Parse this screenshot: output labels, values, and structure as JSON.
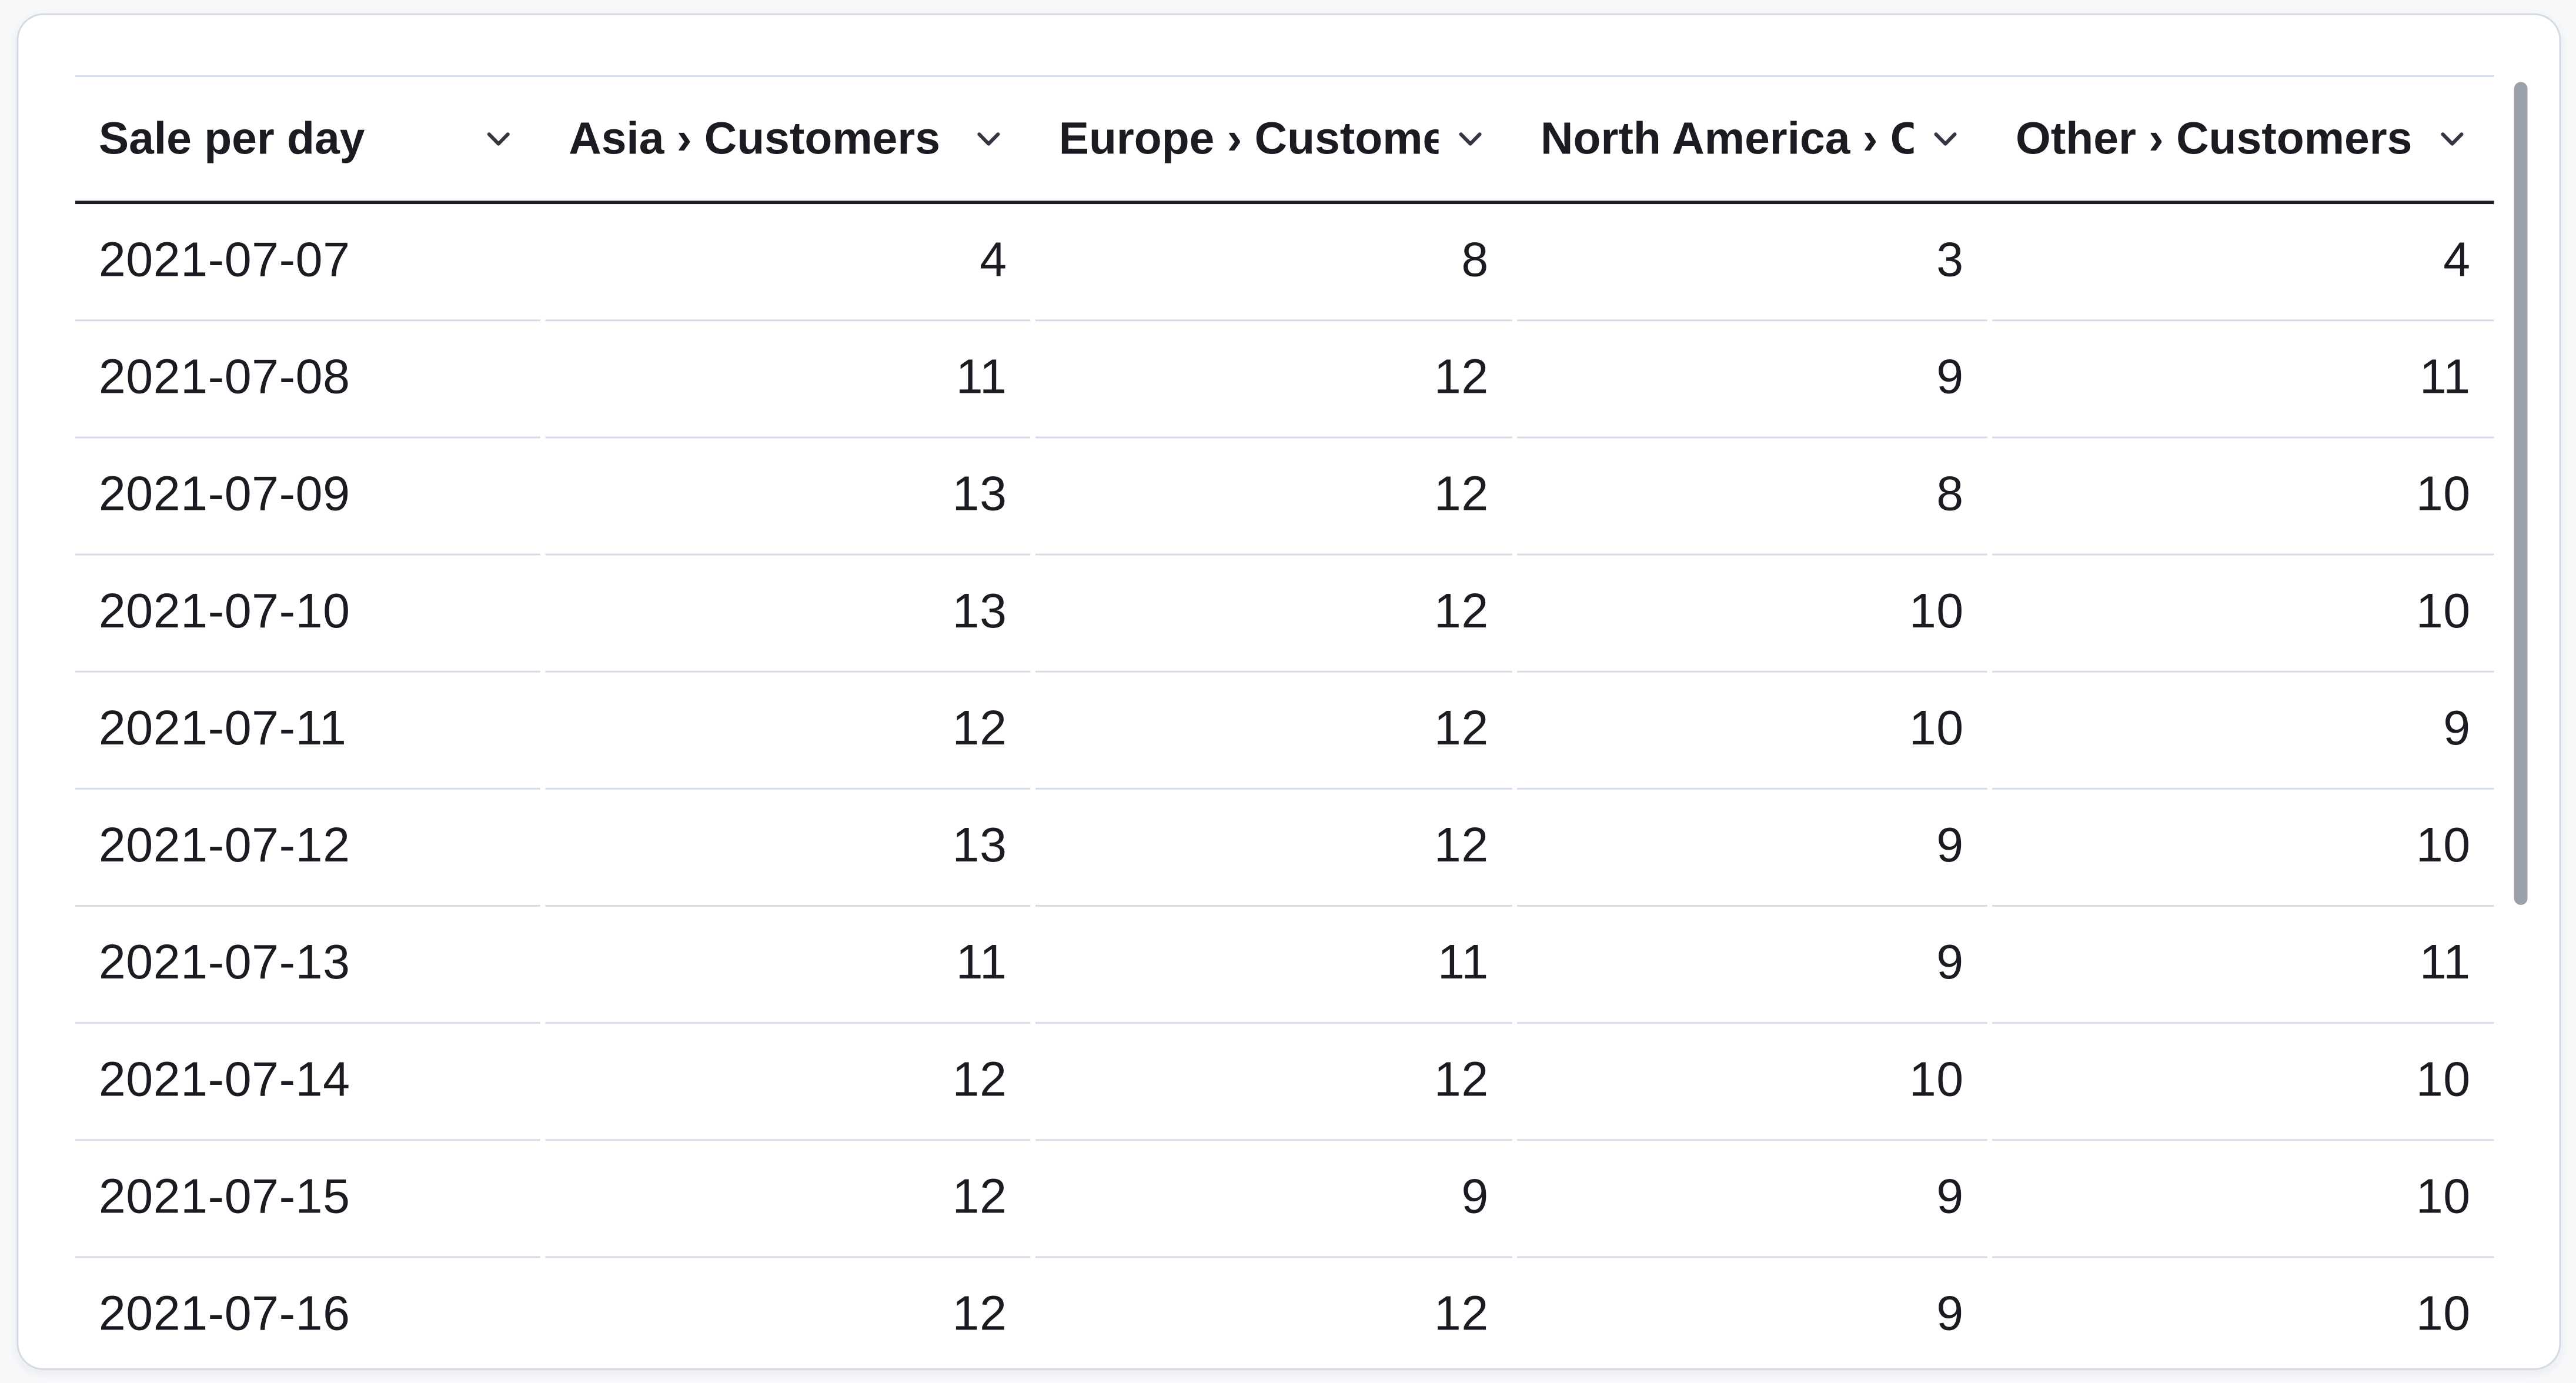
{
  "chart_data": {
    "type": "table",
    "title": "Sale per day",
    "columns": [
      {
        "label": "Sale per day",
        "align": "left"
      },
      {
        "label": "Asia › Customers",
        "align": "right"
      },
      {
        "label": "Europe › Customers",
        "align": "right"
      },
      {
        "label": "North America › Customers",
        "align": "right"
      },
      {
        "label": "Other › Customers",
        "align": "right"
      }
    ],
    "rows": [
      [
        "2021-07-07",
        4,
        8,
        3,
        4
      ],
      [
        "2021-07-08",
        11,
        12,
        9,
        11
      ],
      [
        "2021-07-09",
        13,
        12,
        8,
        10
      ],
      [
        "2021-07-10",
        13,
        12,
        10,
        10
      ],
      [
        "2021-07-11",
        12,
        12,
        10,
        9
      ],
      [
        "2021-07-12",
        13,
        12,
        9,
        10
      ],
      [
        "2021-07-13",
        11,
        11,
        9,
        11
      ],
      [
        "2021-07-14",
        12,
        12,
        10,
        10
      ],
      [
        "2021-07-15",
        12,
        9,
        9,
        10
      ],
      [
        "2021-07-16",
        12,
        12,
        9,
        10
      ]
    ],
    "colors": {
      "text": "#1a1c21",
      "border_light": "#d3dae6",
      "border_dark": "#1d1e24",
      "scrollbar": "#9ba1aa",
      "panel_background": "#ffffff",
      "page_background": "#f7f8fa"
    },
    "icons": {
      "column_menu": "chevron-down-icon"
    }
  }
}
